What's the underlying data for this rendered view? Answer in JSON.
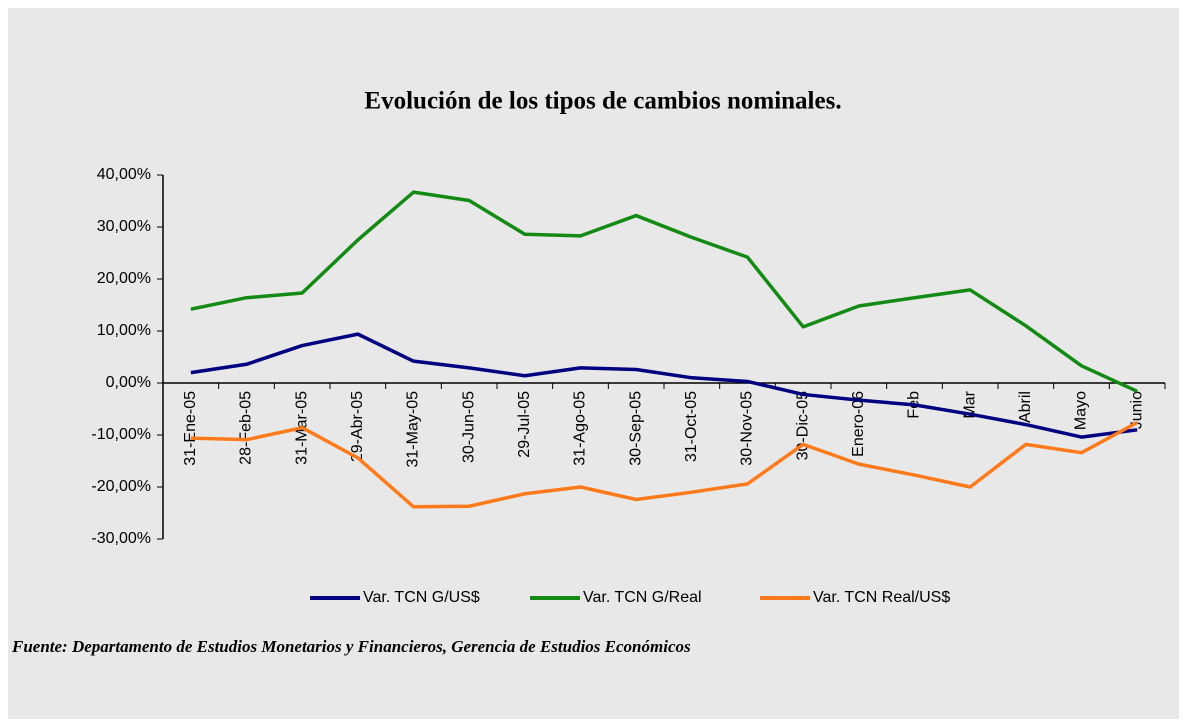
{
  "chart_data": {
    "type": "line",
    "title": "Evolución de los tipos de cambios nominales.",
    "note": "Fuente: Departamento de Estudios Monetarios y Financieros, Gerencia de Estudios Económicos",
    "categories": [
      "31-Ene-05",
      "28-Feb-05",
      "31-Mar-05",
      "29-Abr-05",
      "31-May-05",
      "30-Jun-05",
      "29-Jul-05",
      "31-Ago-05",
      "30-Sep-05",
      "31-Oct-05",
      "30-Nov-05",
      "30-Dic-05",
      "Enero-06",
      "Feb",
      "Mar",
      "Abril",
      "Mayo",
      "Junio"
    ],
    "series": [
      {
        "name": "Var. TCN G/US$",
        "color": "#000080",
        "values": [
          2.0,
          3.6,
          7.2,
          9.4,
          4.2,
          2.9,
          1.4,
          2.9,
          2.6,
          1.0,
          0.3,
          -2.2,
          -3.3,
          -4.2,
          -6.0,
          -8.0,
          -10.4,
          -9.0
        ]
      },
      {
        "name": "Var. TCN G/Real",
        "color": "#138a13",
        "values": [
          14.2,
          16.4,
          17.3,
          27.5,
          36.7,
          35.1,
          28.6,
          28.3,
          32.2,
          28.0,
          24.2,
          10.8,
          14.8,
          16.4,
          17.9,
          11.0,
          3.3,
          -1.6
        ]
      },
      {
        "name": "Var. TCN Real/US$",
        "color": "#ff7a1a",
        "values": [
          -10.6,
          -10.9,
          -8.6,
          -14.4,
          -23.8,
          -23.7,
          -21.3,
          -20.0,
          -22.4,
          -21.0,
          -19.4,
          -11.8,
          -15.6,
          -17.7,
          -20.0,
          -11.8,
          -13.4,
          -7.6
        ]
      }
    ],
    "ylim": [
      -30,
      40
    ],
    "yticks": [
      {
        "value": -30,
        "label": "-30,00%"
      },
      {
        "value": -20,
        "label": "-20,00%"
      },
      {
        "value": -10,
        "label": "-10,00%"
      },
      {
        "value": 0,
        "label": "0,00%"
      },
      {
        "value": 10,
        "label": "10,00%"
      },
      {
        "value": 20,
        "label": "20,00%"
      },
      {
        "value": 30,
        "label": "30,00%"
      },
      {
        "value": 40,
        "label": "40,00%"
      }
    ],
    "legend": "bottom"
  }
}
